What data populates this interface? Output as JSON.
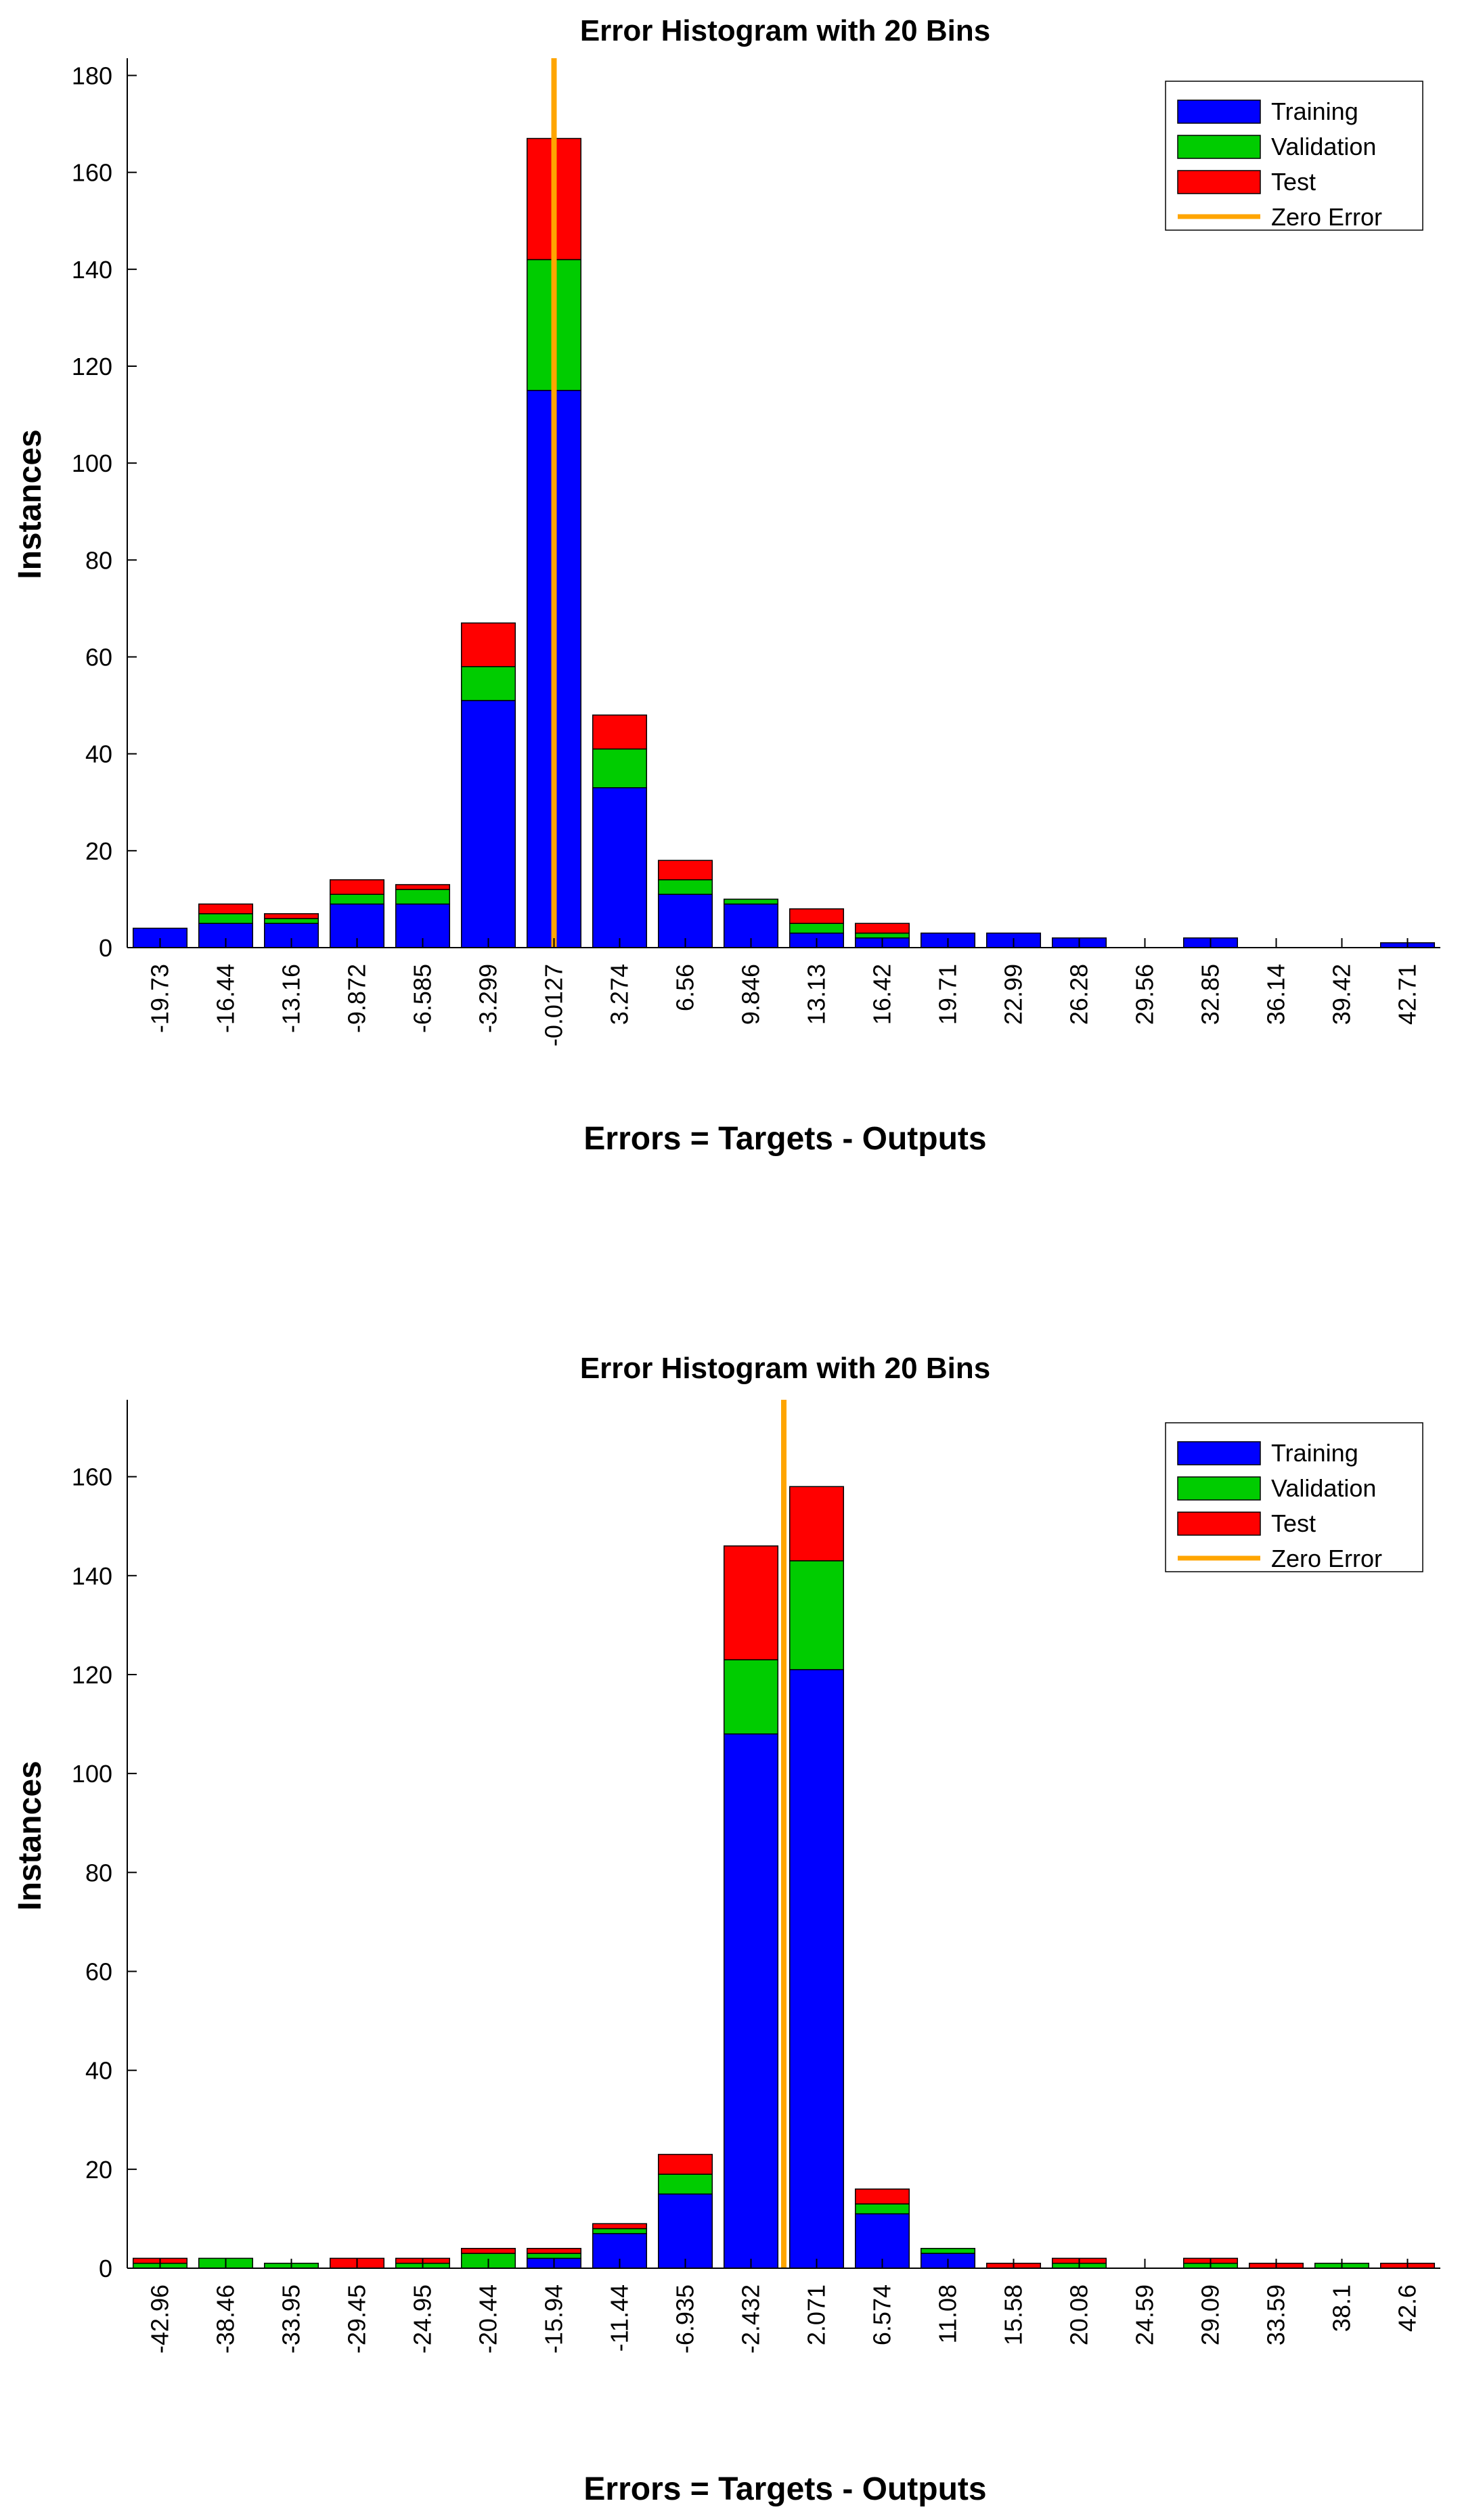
{
  "chart_data": [
    {
      "type": "bar",
      "stacked": true,
      "title": "Error Histogram with 20 Bins",
      "xlabel": "Errors = Targets - Outputs",
      "ylabel": "Instances",
      "ylim": [
        0,
        183
      ],
      "yticks": [
        0,
        20,
        40,
        60,
        80,
        100,
        120,
        140,
        160,
        180
      ],
      "categories": [
        "-19.73",
        "-16.44",
        "-13.16",
        "-9.872",
        "-6.585",
        "-3.299",
        "-0.0127",
        "3.274",
        "6.56",
        "9.846",
        "13.13",
        "16.42",
        "19.71",
        "22.99",
        "26.28",
        "29.56",
        "32.85",
        "36.14",
        "39.42",
        "42.71"
      ],
      "series": [
        {
          "name": "Training",
          "color": "#0000ff",
          "values": [
            4,
            5,
            5,
            9,
            9,
            51,
            115,
            33,
            11,
            9,
            3,
            2,
            3,
            3,
            2,
            0,
            2,
            0,
            0,
            1
          ]
        },
        {
          "name": "Validation",
          "color": "#00cc00",
          "values": [
            0,
            2,
            1,
            2,
            3,
            7,
            27,
            8,
            3,
            1,
            2,
            1,
            0,
            0,
            0,
            0,
            0,
            0,
            0,
            0
          ]
        },
        {
          "name": "Test",
          "color": "#ff0000",
          "values": [
            0,
            2,
            1,
            3,
            1,
            9,
            25,
            7,
            4,
            0,
            3,
            2,
            0,
            0,
            0,
            0,
            0,
            0,
            0,
            0
          ]
        }
      ],
      "zero_error": {
        "name": "Zero Error",
        "color": "#ffa500",
        "bin_index": 6
      },
      "legend": {
        "position": "top-right",
        "entries": [
          "Training",
          "Validation",
          "Test",
          "Zero Error"
        ]
      }
    },
    {
      "type": "bar",
      "stacked": true,
      "title": "Error Histogram with 20 Bins",
      "xlabel": "Errors = Targets - Outputs",
      "ylabel": "Instances",
      "ylim": [
        0,
        175
      ],
      "yticks": [
        0,
        20,
        40,
        60,
        80,
        100,
        120,
        140,
        160
      ],
      "categories": [
        "-42.96",
        "-38.46",
        "-33.95",
        "-29.45",
        "-24.95",
        "-20.44",
        "-15.94",
        "-11.44",
        "-6.935",
        "-2.432",
        "2.071",
        "6.574",
        "11.08",
        "15.58",
        "20.08",
        "24.59",
        "29.09",
        "33.59",
        "38.1",
        "42.6"
      ],
      "series": [
        {
          "name": "Training",
          "color": "#0000ff",
          "values": [
            0,
            0,
            0,
            0,
            0,
            0,
            2,
            7,
            15,
            108,
            121,
            11,
            3,
            0,
            0,
            0,
            0,
            0,
            0,
            0
          ]
        },
        {
          "name": "Validation",
          "color": "#00cc00",
          "values": [
            1,
            2,
            1,
            0,
            1,
            3,
            1,
            1,
            4,
            15,
            22,
            2,
            1,
            0,
            1,
            0,
            1,
            0,
            1,
            0
          ]
        },
        {
          "name": "Test",
          "color": "#ff0000",
          "values": [
            1,
            0,
            0,
            2,
            1,
            1,
            1,
            1,
            4,
            23,
            15,
            3,
            0,
            1,
            1,
            0,
            1,
            1,
            0,
            1
          ]
        }
      ],
      "zero_error": {
        "name": "Zero Error",
        "color": "#ffa500",
        "bin_index": 9.5
      },
      "legend": {
        "position": "top-right",
        "entries": [
          "Training",
          "Validation",
          "Test",
          "Zero Error"
        ]
      }
    }
  ]
}
